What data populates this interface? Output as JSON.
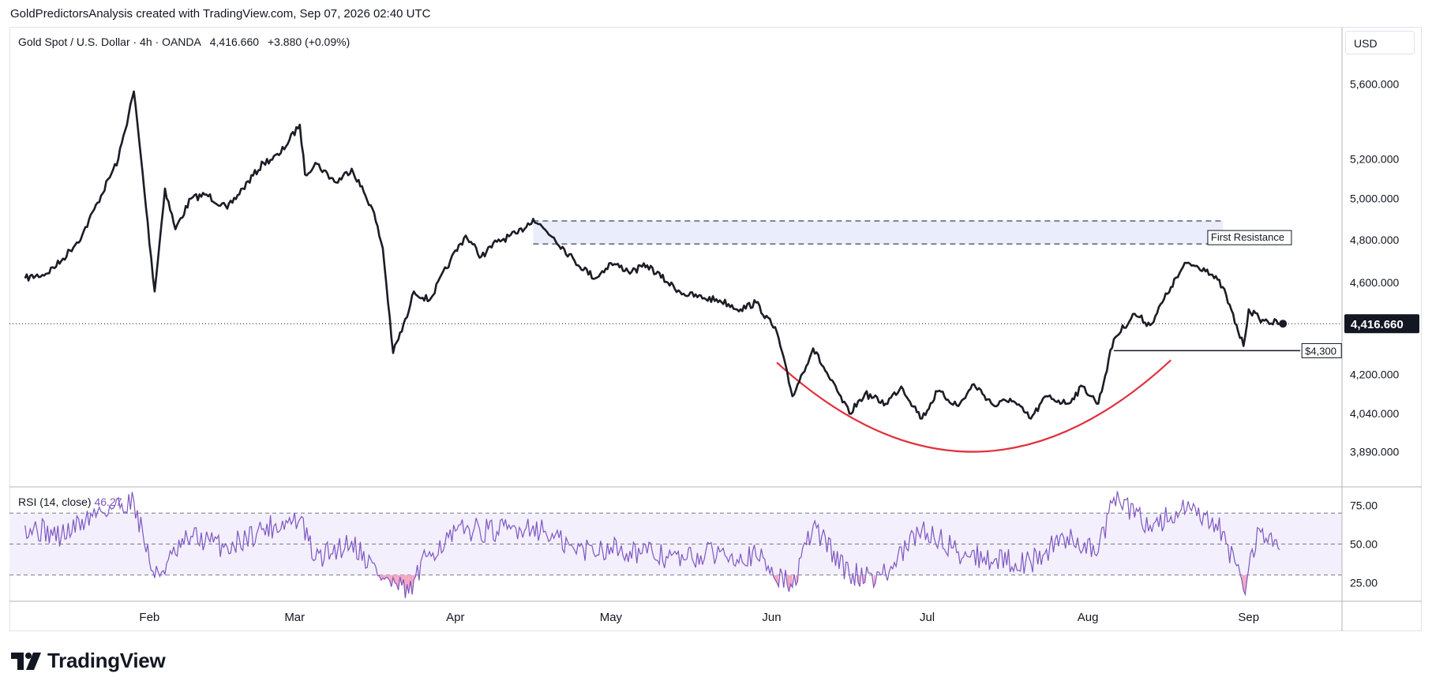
{
  "header": {
    "attribution": "GoldPredictorsAnalysis created with TradingView.com, Sep 07, 2026 02:40 UTC"
  },
  "legend": {
    "symbol": "Gold Spot / U.S. Dollar · 4h · OANDA",
    "price": "4,416.660",
    "change": "+3.880 (+0.09%)"
  },
  "currency": "USD",
  "colors": {
    "price_line": "#1b1d26",
    "cup_arc": "#e0313e",
    "resistance_zone": "#eaedfc",
    "rsi_line": "#7e57c2",
    "rsi_band": "#f3effc",
    "rsi_oversold_fill": "#f4a6c0",
    "price_tag_bg": "#131722"
  },
  "logo": {
    "text": "TradingView",
    "icon": "tradingview-logo-icon"
  },
  "chart_data": [
    {
      "type": "line",
      "title": "Gold Spot / U.S. Dollar · 4h · OANDA",
      "series": [
        {
          "x": [
            "2026-01-08",
            "2026-01-12",
            "2026-01-15",
            "2026-01-19",
            "2026-01-22",
            "2026-01-26",
            "2026-01-29",
            "2026-01-30",
            "2026-02-02",
            "2026-02-04",
            "2026-02-06",
            "2026-02-09",
            "2026-02-12",
            "2026-02-16",
            "2026-02-19",
            "2026-02-23",
            "2026-02-26",
            "2026-03-02",
            "2026-03-03",
            "2026-03-05",
            "2026-03-09",
            "2026-03-12",
            "2026-03-16",
            "2026-03-18",
            "2026-03-20",
            "2026-03-23",
            "2026-03-24",
            "2026-03-27",
            "2026-03-31",
            "2026-04-03",
            "2026-04-06",
            "2026-04-09",
            "2026-04-13",
            "2026-04-16",
            "2026-04-20",
            "2026-04-24",
            "2026-04-28",
            "2026-05-01",
            "2026-05-05",
            "2026-05-08",
            "2026-05-12",
            "2026-05-15",
            "2026-05-19",
            "2026-05-22",
            "2026-05-26",
            "2026-05-29",
            "2026-06-02",
            "2026-06-05",
            "2026-06-09",
            "2026-06-12",
            "2026-06-16",
            "2026-06-19",
            "2026-06-23",
            "2026-06-26",
            "2026-06-30",
            "2026-07-03",
            "2026-07-07",
            "2026-07-10",
            "2026-07-14",
            "2026-07-17",
            "2026-07-21",
            "2026-07-24",
            "2026-07-28",
            "2026-07-31",
            "2026-08-03",
            "2026-08-06",
            "2026-08-10",
            "2026-08-13",
            "2026-08-17",
            "2026-08-20",
            "2026-08-24",
            "2026-08-27",
            "2026-08-31",
            "2026-09-01",
            "2026-09-03",
            "2026-09-04",
            "2026-09-07"
          ],
          "values": [
            4620,
            4640,
            4700,
            4820,
            4980,
            5200,
            5560,
            5300,
            4560,
            5050,
            4850,
            5000,
            5020,
            4950,
            5050,
            5180,
            5220,
            5380,
            5120,
            5180,
            5080,
            5150,
            4950,
            4760,
            4290,
            4470,
            4560,
            4520,
            4700,
            4820,
            4720,
            4790,
            4830,
            4900,
            4810,
            4700,
            4620,
            4690,
            4650,
            4680,
            4600,
            4550,
            4530,
            4520,
            4480,
            4510,
            4380,
            4110,
            4310,
            4190,
            4040,
            4120,
            4080,
            4150,
            4020,
            4130,
            4070,
            4160,
            4070,
            4100,
            4020,
            4110,
            4080,
            4150,
            4080,
            4350,
            4460,
            4410,
            4580,
            4690,
            4660,
            4580,
            4320,
            4480,
            4440,
            4430,
            4416.66
          ]
        }
      ],
      "y_axis": {
        "scale": "log",
        "ticks": [
          "5,600.000",
          "5,200.000",
          "5,000.000",
          "4,800.000",
          "4,600.000",
          "4,200.000",
          "4,040.000",
          "3,890.000"
        ],
        "tick_values": [
          5600,
          5200,
          5000,
          4800,
          4600,
          4200,
          4040,
          3890
        ]
      },
      "x_axis": {
        "ticks": [
          "Feb",
          "Mar",
          "Apr",
          "May",
          "Jun",
          "Jul",
          "Aug",
          "Sep"
        ]
      },
      "last_price": {
        "value": 4416.66,
        "label": "4,416.660"
      },
      "annotations": [
        {
          "type": "zone",
          "label": "First Resistance",
          "y_low": 4780,
          "y_high": 4890,
          "x_start": "2026-04-16",
          "x_end": "2026-08-27"
        },
        {
          "type": "horizontal_line",
          "label": "$4,300",
          "y": 4300,
          "x_start": "2026-08-06",
          "x_end": "2026-09-07"
        },
        {
          "type": "arc",
          "x_start": "2026-06-02",
          "x_end": "2026-08-17",
          "y_start": 4250,
          "y_bottom": 3890,
          "y_end": 4260
        }
      ],
      "grid": false
    },
    {
      "type": "line",
      "title": "RSI 14 close",
      "legend_label": "RSI (14, close)",
      "current_value": "46.27",
      "series": [
        {
          "x": [
            "2026-01-08",
            "2026-01-15",
            "2026-01-22",
            "2026-01-29",
            "2026-02-02",
            "2026-02-09",
            "2026-02-16",
            "2026-02-23",
            "2026-03-02",
            "2026-03-05",
            "2026-03-12",
            "2026-03-18",
            "2026-03-23",
            "2026-03-27",
            "2026-04-03",
            "2026-04-09",
            "2026-04-16",
            "2026-04-24",
            "2026-05-01",
            "2026-05-08",
            "2026-05-15",
            "2026-05-22",
            "2026-05-29",
            "2026-06-05",
            "2026-06-09",
            "2026-06-16",
            "2026-06-23",
            "2026-06-30",
            "2026-07-07",
            "2026-07-14",
            "2026-07-21",
            "2026-07-28",
            "2026-08-03",
            "2026-08-06",
            "2026-08-13",
            "2026-08-20",
            "2026-08-27",
            "2026-08-31",
            "2026-09-03",
            "2026-09-07"
          ],
          "values": [
            62,
            55,
            71,
            78,
            28,
            55,
            48,
            60,
            66,
            40,
            52,
            28,
            18,
            45,
            60,
            58,
            62,
            46,
            48,
            44,
            40,
            45,
            42,
            22,
            62,
            30,
            30,
            60,
            45,
            40,
            38,
            55,
            45,
            80,
            62,
            72,
            58,
            20,
            60,
            46.27
          ]
        }
      ],
      "y_axis": {
        "ticks": [
          "75.00",
          "50.00",
          "25.00"
        ],
        "tick_values": [
          75,
          50,
          25
        ],
        "range": [
          13,
          87
        ]
      },
      "bands": {
        "upper": 70,
        "middle": 50,
        "lower": 30
      },
      "x_axis": {
        "ticks": [
          "Feb",
          "Mar",
          "Apr",
          "May",
          "Jun",
          "Jul",
          "Aug",
          "Sep"
        ]
      }
    }
  ]
}
